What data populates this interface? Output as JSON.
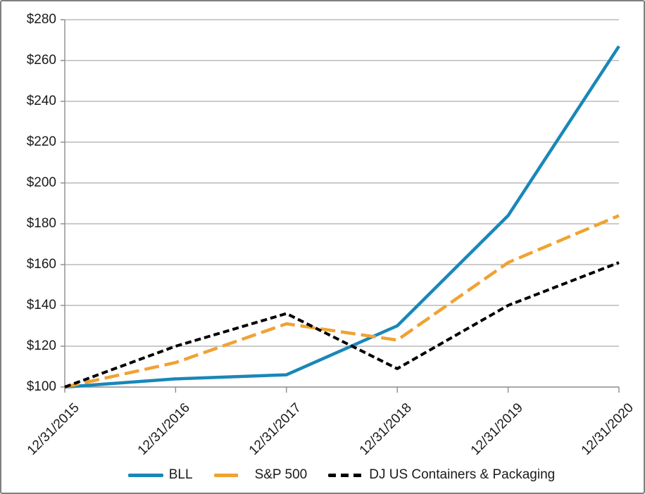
{
  "chart_data": {
    "type": "line",
    "title": "",
    "categories": [
      "12/31/2015",
      "12/31/2016",
      "12/31/2017",
      "12/31/2018",
      "12/31/2019",
      "12/31/2020"
    ],
    "series": [
      {
        "name": "BLL",
        "values": [
          100,
          104,
          106,
          130,
          184,
          267
        ],
        "color": "#1987B8",
        "dash": "solid"
      },
      {
        "name": "S&P 500",
        "values": [
          100,
          112,
          131,
          123,
          161,
          184
        ],
        "color": "#F0A232",
        "dash": "long-dash"
      },
      {
        "name": "DJ US Containers & Packaging",
        "values": [
          100,
          120,
          136,
          109,
          140,
          161
        ],
        "color": "#000000",
        "dash": "short-dash"
      }
    ],
    "y_axis": {
      "min": 100,
      "max": 280,
      "step": 20,
      "tick_labels": [
        "$100",
        "$120",
        "$140",
        "$160",
        "$180",
        "$200",
        "$220",
        "$240",
        "$260",
        "$280"
      ]
    },
    "x_axis": {
      "tick_labels": [
        "12/31/2015",
        "12/31/2016",
        "12/31/2017",
        "12/31/2018",
        "12/31/2019",
        "12/31/2020"
      ]
    },
    "legend_position": "bottom",
    "grid": "horizontal",
    "style": {
      "grid_color": "#ACACAC",
      "axis_color": "#8C8C8C",
      "text_color": "#1a1a1a",
      "border_color": "#808080",
      "background": "#FFFFFF"
    }
  }
}
